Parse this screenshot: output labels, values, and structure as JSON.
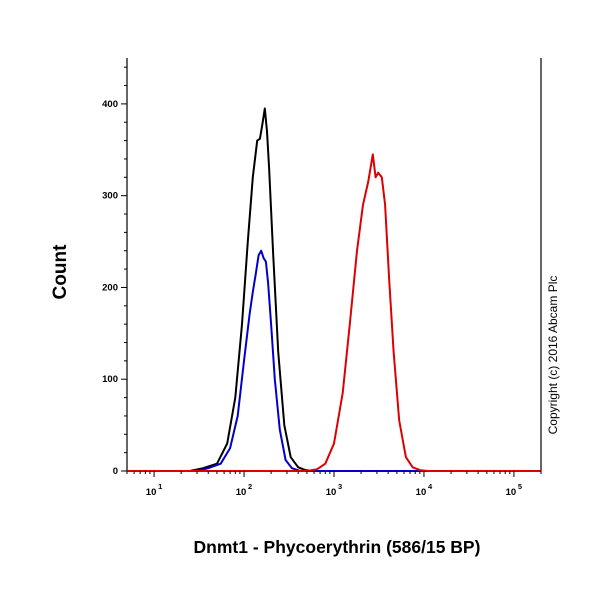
{
  "chart_data": {
    "type": "line",
    "title": "",
    "xlabel": "Dnmt1 - Phycoerythrin (586/15 BP)",
    "ylabel": "Count",
    "xscale": "log",
    "xlim": [
      5,
      200000
    ],
    "ylim": [
      0,
      450
    ],
    "grid": false,
    "y_ticks": [
      0,
      100,
      200,
      300,
      400
    ],
    "y_tick_labels": [
      "0",
      "100",
      "200",
      "300",
      "400"
    ],
    "x_ticks": [
      10,
      100,
      1000,
      10000,
      100000
    ],
    "x_tick_labels": [
      {
        "base": "10",
        "exp": "1"
      },
      {
        "base": "10",
        "exp": "2"
      },
      {
        "base": "10",
        "exp": "3"
      },
      {
        "base": "10",
        "exp": "4"
      },
      {
        "base": "10",
        "exp": "5"
      }
    ],
    "annotation": "Copyright (c) 2016 Abcam Plc",
    "series": [
      {
        "color": "#000000",
        "x": [
          5,
          25,
          35,
          50,
          65,
          80,
          95,
          110,
          125,
          140,
          150,
          160,
          170,
          180,
          190,
          210,
          240,
          280,
          330,
          400,
          480,
          600,
          800,
          200000
        ],
        "y": [
          0,
          0,
          3,
          8,
          30,
          80,
          160,
          250,
          320,
          360,
          362,
          378,
          395,
          370,
          330,
          240,
          130,
          50,
          15,
          4,
          1,
          0,
          0,
          0
        ]
      },
      {
        "color": "#0000cc",
        "x": [
          5,
          30,
          40,
          55,
          70,
          85,
          100,
          115,
          125,
          135,
          145,
          155,
          165,
          175,
          185,
          200,
          220,
          250,
          290,
          340,
          420,
          600,
          200000
        ],
        "y": [
          0,
          0,
          3,
          8,
          25,
          60,
          120,
          170,
          195,
          215,
          235,
          240,
          232,
          228,
          205,
          160,
          100,
          45,
          12,
          3,
          0,
          0,
          0
        ]
      },
      {
        "color": "#dd0000",
        "x": [
          5,
          500,
          650,
          800,
          1000,
          1250,
          1500,
          1800,
          2100,
          2400,
          2700,
          2900,
          3100,
          3400,
          3700,
          4100,
          4600,
          5300,
          6300,
          7500,
          9000,
          11000,
          15000,
          200000
        ],
        "y": [
          0,
          0,
          2,
          8,
          30,
          85,
          160,
          240,
          290,
          315,
          345,
          320,
          325,
          320,
          290,
          210,
          130,
          55,
          15,
          4,
          1,
          0,
          0,
          0
        ]
      }
    ]
  }
}
